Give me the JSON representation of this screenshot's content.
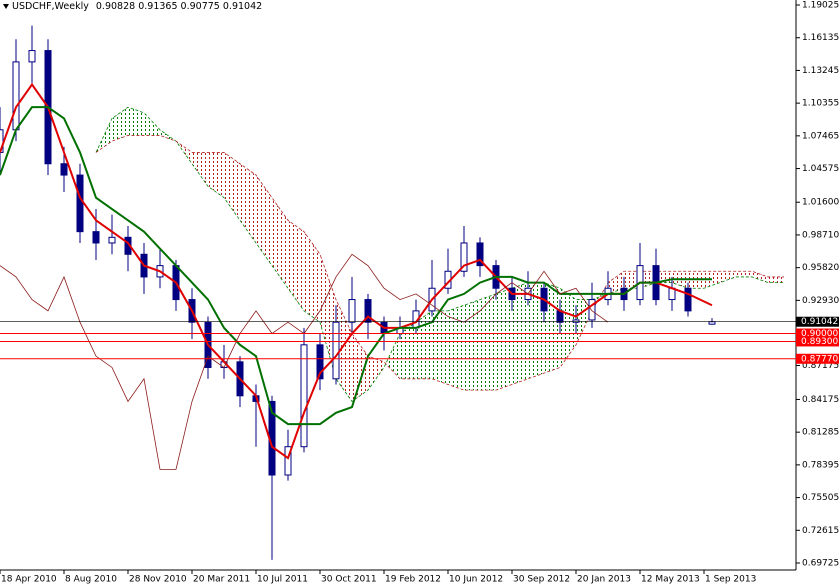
{
  "chart_data": {
    "type": "candlestick",
    "symbol": "USDCHF,Weekly",
    "candle_color": "#000080",
    "x": [
      0,
      4,
      8,
      12,
      16,
      20,
      24,
      28,
      32,
      36,
      40,
      44,
      48,
      52,
      56,
      60,
      64,
      68,
      72,
      76,
      80,
      84,
      88,
      92,
      96,
      100,
      104,
      108,
      112,
      116,
      120,
      124,
      128,
      132,
      136,
      140,
      144,
      148,
      152,
      156,
      160,
      164,
      168,
      172,
      178
    ],
    "open": [
      1.06,
      1.08,
      1.14,
      1.15,
      1.05,
      1.04,
      0.99,
      0.98,
      0.985,
      0.97,
      0.95,
      0.96,
      0.93,
      0.91,
      0.87,
      0.875,
      0.845,
      0.84,
      0.775,
      0.8,
      0.89,
      0.86,
      0.91,
      0.93,
      0.91,
      0.9,
      0.905,
      0.92,
      0.94,
      0.955,
      0.98,
      0.96,
      0.94,
      0.93,
      0.94,
      0.92,
      0.91,
      0.912,
      0.93,
      0.94,
      0.93,
      0.96,
      0.93,
      0.94,
      0.90828
    ],
    "high": [
      1.1,
      1.16,
      1.172,
      1.16,
      1.065,
      1.05,
      1.01,
      1.005,
      0.995,
      0.98,
      0.975,
      0.965,
      0.94,
      0.915,
      0.89,
      0.88,
      0.855,
      0.845,
      0.815,
      0.905,
      0.9,
      0.925,
      0.95,
      0.935,
      0.915,
      0.915,
      0.93,
      0.965,
      0.975,
      0.995,
      0.985,
      0.965,
      0.95,
      0.955,
      0.945,
      0.93,
      0.925,
      0.945,
      0.955,
      0.95,
      0.98,
      0.975,
      0.95,
      0.945,
      0.91365
    ],
    "low": [
      1.04,
      1.07,
      1.12,
      1.04,
      1.025,
      0.98,
      0.965,
      0.97,
      0.955,
      0.935,
      0.94,
      0.92,
      0.895,
      0.86,
      0.86,
      0.835,
      0.8,
      0.7,
      0.77,
      0.795,
      0.85,
      0.855,
      0.9,
      0.895,
      0.885,
      0.895,
      0.9,
      0.915,
      0.935,
      0.95,
      0.95,
      0.93,
      0.92,
      0.925,
      0.91,
      0.9,
      0.9,
      0.905,
      0.925,
      0.92,
      0.925,
      0.925,
      0.92,
      0.915,
      0.90775
    ],
    "close": [
      1.08,
      1.14,
      1.15,
      1.05,
      1.04,
      0.99,
      0.98,
      0.985,
      0.97,
      0.95,
      0.96,
      0.93,
      0.91,
      0.87,
      0.875,
      0.845,
      0.84,
      0.775,
      0.8,
      0.89,
      0.86,
      0.91,
      0.93,
      0.91,
      0.9,
      0.905,
      0.92,
      0.94,
      0.955,
      0.98,
      0.96,
      0.94,
      0.93,
      0.94,
      0.92,
      0.91,
      0.912,
      0.93,
      0.94,
      0.93,
      0.96,
      0.93,
      0.94,
      0.92,
      0.91042
    ],
    "overlays": [
      {
        "color": "#e00000",
        "values": [
          1.06,
          1.1,
          1.12,
          1.1,
          1.06,
          1.02,
          1.0,
          0.99,
          0.98,
          0.96,
          0.955,
          0.945,
          0.92,
          0.89,
          0.875,
          0.86,
          0.845,
          0.8,
          0.79,
          0.83,
          0.865,
          0.88,
          0.9,
          0.915,
          0.905,
          0.905,
          0.91,
          0.93,
          0.945,
          0.96,
          0.965,
          0.95,
          0.935,
          0.935,
          0.93,
          0.92,
          0.915,
          0.925,
          0.935,
          0.935,
          0.945,
          0.945,
          0.94,
          0.935,
          0.925
        ]
      },
      {
        "color": "#007000",
        "values": [
          1.04,
          1.08,
          1.1,
          1.1,
          1.09,
          1.06,
          1.02,
          1.01,
          1.0,
          0.99,
          0.975,
          0.96,
          0.945,
          0.93,
          0.905,
          0.89,
          0.88,
          0.83,
          0.82,
          0.82,
          0.82,
          0.83,
          0.835,
          0.88,
          0.9,
          0.905,
          0.905,
          0.91,
          0.93,
          0.935,
          0.945,
          0.95,
          0.95,
          0.945,
          0.945,
          0.935,
          0.935,
          0.935,
          0.935,
          0.935,
          0.945,
          0.945,
          0.948,
          0.948,
          0.948
        ]
      },
      {
        "color": "#8b1a1a",
        "x": [
          0,
          4,
          8,
          12,
          16,
          20,
          24,
          28,
          32,
          36,
          40,
          44,
          48,
          52,
          56,
          60,
          64,
          68,
          72,
          76,
          80,
          84,
          88,
          92,
          96,
          100,
          104,
          108,
          112,
          116,
          120,
          124,
          128,
          132,
          136,
          140,
          144,
          148,
          152
        ],
        "values": [
          0.96,
          0.95,
          0.93,
          0.92,
          0.95,
          0.91,
          0.88,
          0.87,
          0.84,
          0.86,
          0.78,
          0.78,
          0.84,
          0.88,
          0.87,
          0.9,
          0.92,
          0.9,
          0.91,
          0.9,
          0.92,
          0.95,
          0.97,
          0.96,
          0.94,
          0.93,
          0.935,
          0.925,
          0.915,
          0.91,
          0.92,
          0.935,
          0.945,
          0.935,
          0.955,
          0.935,
          0.94,
          0.92,
          0.91
        ]
      }
    ],
    "cloud": {
      "up_color": "#008000",
      "down_color": "#b22222",
      "x": [
        24,
        28,
        32,
        36,
        40,
        44,
        48,
        52,
        56,
        60,
        64,
        68,
        72,
        76,
        80,
        84,
        88,
        92,
        96,
        100,
        104,
        108,
        112,
        116,
        120,
        124,
        128,
        132,
        136,
        140,
        144,
        148,
        152,
        156,
        160,
        164,
        168,
        172,
        176,
        180,
        184,
        188,
        192,
        196
      ],
      "span_a": [
        1.06,
        1.09,
        1.1,
        1.095,
        1.08,
        1.07,
        1.05,
        1.03,
        1.02,
        1.0,
        0.98,
        0.96,
        0.94,
        0.92,
        0.91,
        0.86,
        0.84,
        0.85,
        0.87,
        0.9,
        0.91,
        0.92,
        0.92,
        0.925,
        0.93,
        0.935,
        0.94,
        0.945,
        0.945,
        0.94,
        0.93,
        0.93,
        0.935,
        0.94,
        0.94,
        0.945,
        0.945,
        0.94,
        0.94,
        0.945,
        0.95,
        0.95,
        0.945,
        0.945
      ],
      "span_b": [
        1.06,
        1.07,
        1.075,
        1.075,
        1.075,
        1.07,
        1.06,
        1.06,
        1.06,
        1.05,
        1.04,
        1.02,
        1.0,
        0.99,
        0.97,
        0.93,
        0.9,
        0.88,
        0.875,
        0.86,
        0.86,
        0.86,
        0.855,
        0.85,
        0.85,
        0.85,
        0.855,
        0.86,
        0.865,
        0.87,
        0.89,
        0.92,
        0.945,
        0.955,
        0.955,
        0.955,
        0.955,
        0.955,
        0.955,
        0.955,
        0.955,
        0.955,
        0.95,
        0.95
      ]
    },
    "levels": [
      {
        "value": 0.9,
        "label": "0.90000",
        "color": "#ff0000"
      },
      {
        "value": 0.893,
        "label": "0.89300",
        "color": "#ff0000"
      },
      {
        "value": 0.8777,
        "label": "0.87770",
        "color": "#ff0000"
      }
    ],
    "xlim": [
      0,
      199
    ],
    "xticks": [
      {
        "value": 0,
        "label": "18 Apr 2010"
      },
      {
        "value": 16,
        "label": "8 Aug 2010"
      },
      {
        "value": 32,
        "label": "28 Nov 2010"
      },
      {
        "value": 48,
        "label": "20 Mar 2011"
      },
      {
        "value": 64,
        "label": "10 Jul 2011"
      },
      {
        "value": 80,
        "label": "30 Oct 2011"
      },
      {
        "value": 96,
        "label": "19 Feb 2012"
      },
      {
        "value": 112,
        "label": "10 Jun 2012"
      },
      {
        "value": 128,
        "label": "30 Sep 2012"
      },
      {
        "value": 144,
        "label": "20 Jan 2013"
      },
      {
        "value": 160,
        "label": "12 May 2013"
      },
      {
        "value": 176,
        "label": "1 Sep 2013"
      }
    ],
    "ylim": [
      0.69107,
      1.19467
    ],
    "yticks": [
      1.19025,
      1.16135,
      1.13245,
      1.10355,
      1.07465,
      1.04575,
      {
        "value": 1.016,
        "label": "1.01600"
      },
      {
        "value": 0.9871,
        "label": "0.98710"
      },
      {
        "value": 0.9582,
        "label": "0.95820"
      },
      {
        "value": 0.9293,
        "label": "0.92930"
      },
      0.87175,
      0.84175,
      0.81285,
      0.78395,
      0.75505,
      0.72615,
      0.69725
    ]
  }
}
